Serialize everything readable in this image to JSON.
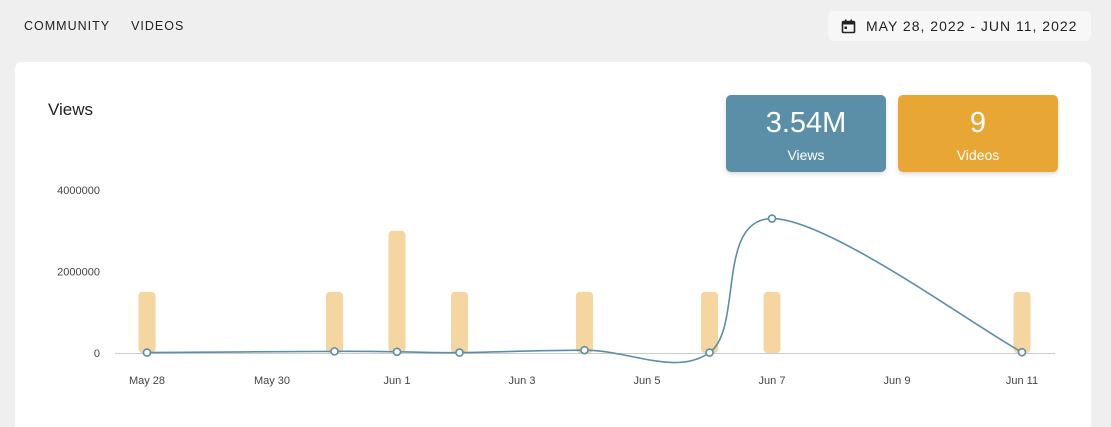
{
  "nav": {
    "items": [
      {
        "label": "COMMUNITY"
      },
      {
        "label": "VIDEOS"
      }
    ]
  },
  "date_range": {
    "icon": "calendar-icon",
    "label": "MAY 28, 2022 - JUN 11, 2022"
  },
  "card": {
    "title": "Views"
  },
  "stats": {
    "views": {
      "value": "3.54M",
      "label": "Views",
      "color": "#5b8fa8"
    },
    "videos": {
      "value": "9",
      "label": "Videos",
      "color": "#e8a735"
    }
  },
  "chart_data": {
    "type": "line",
    "title": "Views",
    "xlabel": "",
    "ylabel": "",
    "ylim": [
      0,
      4000000
    ],
    "y_ticks": [
      "0",
      "2000000",
      "4000000"
    ],
    "x_tick_labels": [
      "May 28",
      "May 30",
      "Jun 1",
      "Jun 3",
      "Jun 5",
      "Jun 7",
      "Jun 9",
      "Jun 11"
    ],
    "x_range": [
      "2022-05-28",
      "2022-06-11"
    ],
    "grid": false,
    "colors": {
      "line": "#5b8fa8",
      "bar": "#f5d5a0",
      "axis": "#cccccc"
    },
    "series": [
      {
        "values": [
          {
            "x": "2022-05-28",
            "y": 10000
          },
          {
            "x": "2022-05-31",
            "y": 40000
          },
          {
            "x": "2022-06-01",
            "y": 30000
          },
          {
            "x": "2022-06-02",
            "y": 10000
          },
          {
            "x": "2022-06-04",
            "y": 70000
          },
          {
            "x": "2022-06-06",
            "y": 10000
          },
          {
            "x": "2022-06-07",
            "y": 3300000
          },
          {
            "x": "2022-06-11",
            "y": 20000
          }
        ]
      }
    ],
    "bars": [
      {
        "x": "2022-05-28",
        "y": 1500000
      },
      {
        "x": "2022-05-31",
        "y": 1500000
      },
      {
        "x": "2022-06-01",
        "y": 3000000
      },
      {
        "x": "2022-06-02",
        "y": 1500000
      },
      {
        "x": "2022-06-04",
        "y": 1500000
      },
      {
        "x": "2022-06-06",
        "y": 1500000
      },
      {
        "x": "2022-06-07",
        "y": 1500000
      },
      {
        "x": "2022-06-11",
        "y": 1500000
      }
    ]
  }
}
